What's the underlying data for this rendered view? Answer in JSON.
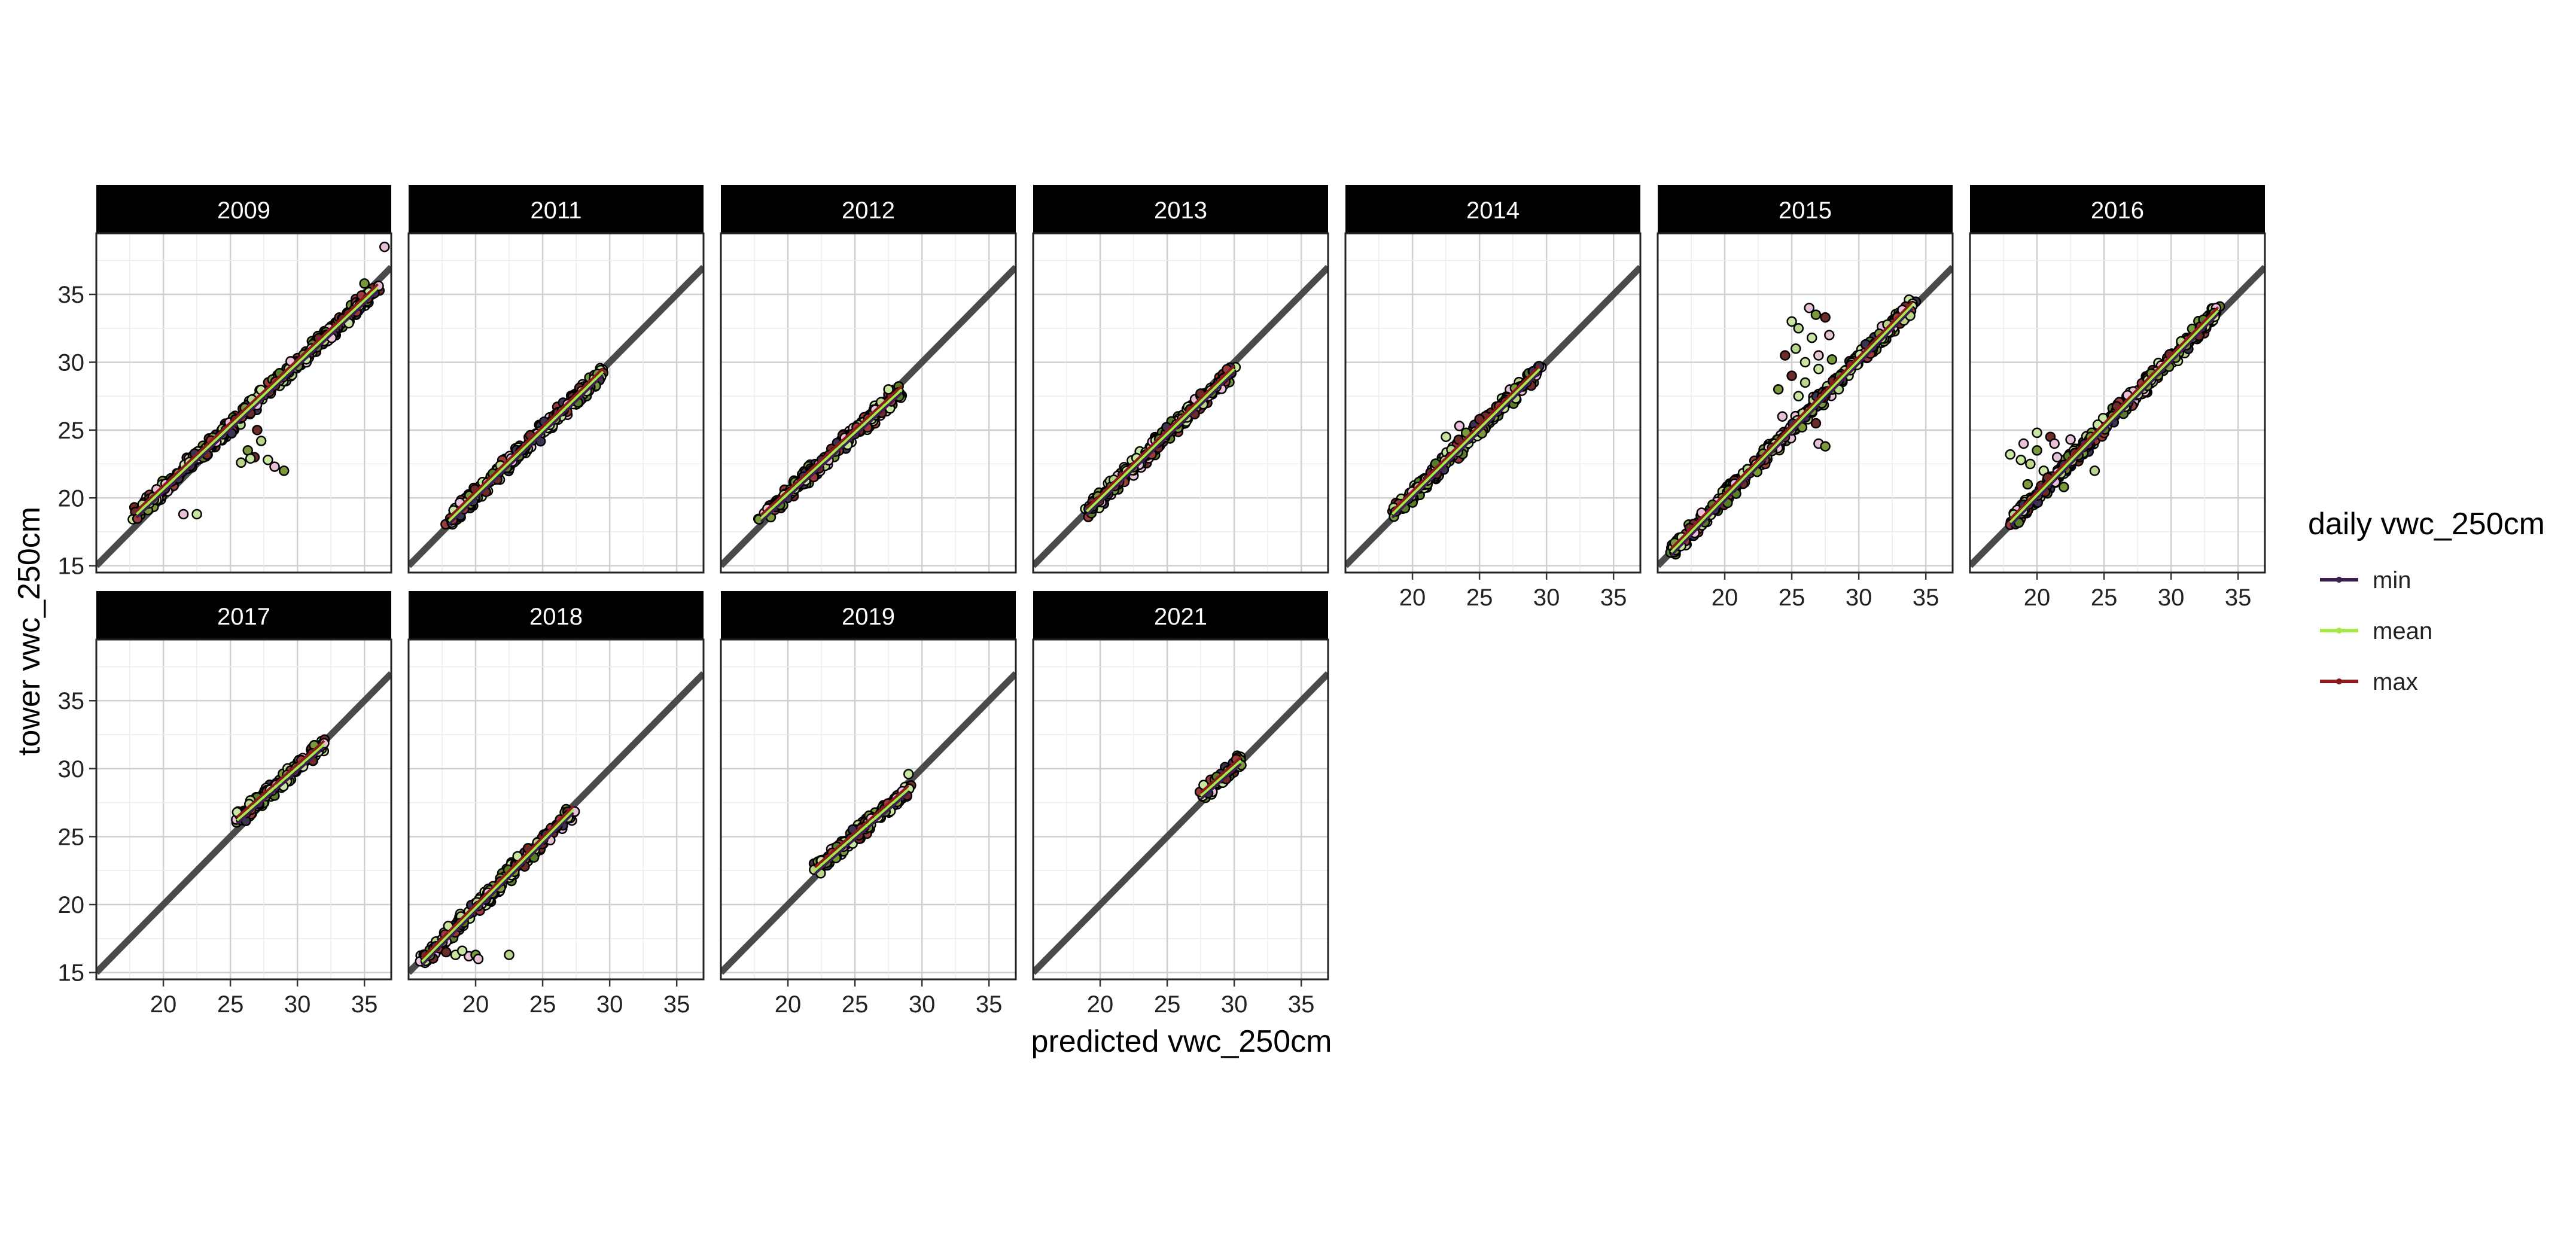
{
  "chart_data": {
    "type": "scatter",
    "xlabel": "predicted vwc_250cm",
    "ylabel": "tower vwc_250cm",
    "xlim": [
      15,
      37
    ],
    "ylim": [
      14.5,
      39.5
    ],
    "x_ticks": [
      20,
      25,
      30,
      35
    ],
    "y_ticks": [
      15,
      20,
      25,
      30,
      35
    ],
    "grid": true,
    "reference_line": "1:1",
    "legend": {
      "title": "daily vwc_250cm",
      "position": "right",
      "entries": [
        {
          "label": "min",
          "color": "#3b1f4f"
        },
        {
          "label": "mean",
          "color": "#a6e84a"
        },
        {
          "label": "max",
          "color": "#8b1a1a"
        }
      ]
    },
    "panels": [
      {
        "label": "2009",
        "x_range": [
          18,
          36
        ],
        "fit": [
          [
            18,
            18.8
          ],
          [
            36,
            35.5
          ]
        ],
        "outliers": [
          [
            22.5,
            18.8
          ],
          [
            21.5,
            18.8
          ],
          [
            26.3,
            23.5
          ],
          [
            26.8,
            23.0
          ],
          [
            27.3,
            24.2
          ],
          [
            27.8,
            22.8
          ],
          [
            28.3,
            22.3
          ],
          [
            29.0,
            22.0
          ],
          [
            27.0,
            25.0
          ],
          [
            25.8,
            22.6
          ],
          [
            26.5,
            22.9
          ],
          [
            36.5,
            38.5
          ],
          [
            35.0,
            35.8
          ],
          [
            33.8,
            33.6
          ]
        ]
      },
      {
        "label": "2011",
        "x_range": [
          18,
          29.5
        ],
        "fit": [
          [
            18,
            18.3
          ],
          [
            29.5,
            29.3
          ]
        ],
        "outliers": []
      },
      {
        "label": "2012",
        "x_range": [
          18,
          28.5
        ],
        "fit": [
          [
            18,
            18.5
          ],
          [
            28.5,
            28.0
          ]
        ],
        "outliers": [
          [
            27.5,
            28.0
          ],
          [
            26.5,
            26.5
          ]
        ]
      },
      {
        "label": "2013",
        "x_range": [
          19,
          30
        ],
        "fit": [
          [
            19,
            19.0
          ],
          [
            30,
            29.5
          ]
        ],
        "outliers": []
      },
      {
        "label": "2014",
        "x_range": [
          18.5,
          29.5
        ],
        "fit": [
          [
            18.5,
            18.8
          ],
          [
            29.5,
            29.5
          ]
        ],
        "outliers": [
          [
            22.5,
            24.5
          ],
          [
            23.5,
            25.3
          ],
          [
            24.0,
            24.8
          ],
          [
            25.0,
            25.8
          ]
        ]
      },
      {
        "label": "2015",
        "x_range": [
          16,
          34
        ],
        "fit": [
          [
            16,
            16.0
          ],
          [
            34,
            34.2
          ]
        ],
        "outliers": [
          [
            25.0,
            33.0
          ],
          [
            26.3,
            34.0
          ],
          [
            26.8,
            33.5
          ],
          [
            27.5,
            33.3
          ],
          [
            25.3,
            31.0
          ],
          [
            26.0,
            30.0
          ],
          [
            27.0,
            30.5
          ],
          [
            28.0,
            30.2
          ],
          [
            24.5,
            30.5
          ],
          [
            25.5,
            32.5
          ],
          [
            26.5,
            31.8
          ],
          [
            27.8,
            32.0
          ],
          [
            24.0,
            28.0
          ],
          [
            25.0,
            29.0
          ],
          [
            26.0,
            28.5
          ],
          [
            27.0,
            29.5
          ],
          [
            27.0,
            24.0
          ],
          [
            27.5,
            23.8
          ],
          [
            26.8,
            25.5
          ],
          [
            28.5,
            28.0
          ],
          [
            25.5,
            27.5
          ],
          [
            24.3,
            26.0
          ]
        ]
      },
      {
        "label": "2016",
        "x_range": [
          18,
          33.5
        ],
        "fit": [
          [
            18,
            18.2
          ],
          [
            33.5,
            33.8
          ]
        ],
        "outliers": [
          [
            18.0,
            23.2
          ],
          [
            19.0,
            24.0
          ],
          [
            20.0,
            23.5
          ],
          [
            21.0,
            24.5
          ],
          [
            19.5,
            22.5
          ],
          [
            20.5,
            22.0
          ],
          [
            21.5,
            23.0
          ],
          [
            19.3,
            21.0
          ],
          [
            20.8,
            21.5
          ],
          [
            21.8,
            21.8
          ],
          [
            20.0,
            24.8
          ],
          [
            22.5,
            24.3
          ],
          [
            24.0,
            24.5
          ],
          [
            22.8,
            23.3
          ],
          [
            24.3,
            22.0
          ],
          [
            18.8,
            22.8
          ],
          [
            21.3,
            24.0
          ],
          [
            22.0,
            20.8
          ]
        ]
      },
      {
        "label": "2017",
        "x_range": [
          25.5,
          32
        ],
        "fit": [
          [
            25.5,
            26.2
          ],
          [
            32,
            31.8
          ]
        ],
        "outliers": [
          [
            25.5,
            26.8
          ]
        ]
      },
      {
        "label": "2018",
        "x_range": [
          16,
          27.3
        ],
        "fit": [
          [
            16,
            15.8
          ],
          [
            27.3,
            27.0
          ]
        ],
        "outliers": [
          [
            18.5,
            16.3
          ],
          [
            19.5,
            16.2
          ],
          [
            20.0,
            16.3
          ],
          [
            17.8,
            16.5
          ],
          [
            22.5,
            16.3
          ],
          [
            19.0,
            16.6
          ],
          [
            20.2,
            16.0
          ]
        ]
      },
      {
        "label": "2019",
        "x_range": [
          22,
          29
        ],
        "fit": [
          [
            22,
            22.5
          ],
          [
            29,
            28.5
          ]
        ],
        "outliers": [
          [
            29.0,
            29.6
          ]
        ]
      },
      {
        "label": "2021",
        "x_range": [
          27.5,
          30.5
        ],
        "fit": [
          [
            27.5,
            28.0
          ],
          [
            30.5,
            30.6
          ]
        ],
        "outliers": []
      }
    ]
  }
}
